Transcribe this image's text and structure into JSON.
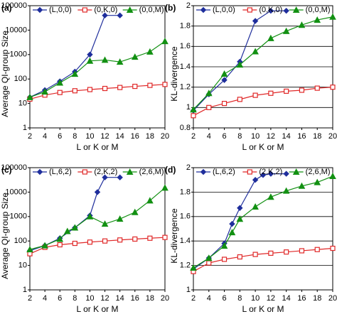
{
  "chart_data": [
    {
      "type": "line",
      "panel": "(a)",
      "y_label": "Average QI-group Size",
      "x_label": "L or K or M",
      "xlim": [
        2,
        20
      ],
      "xticks": [
        2,
        4,
        6,
        8,
        10,
        12,
        14,
        16,
        18,
        20
      ],
      "ylim": [
        1,
        100000
      ],
      "yticks": [
        1,
        10,
        100,
        1000,
        10000,
        100000
      ],
      "log_y": true,
      "grid": false,
      "series": [
        {
          "name": "(L,0,0)",
          "color": "#1f2e9c",
          "marker": "diamond",
          "x": [
            2,
            4,
            6,
            8,
            10,
            12,
            14
          ],
          "values": [
            18,
            35,
            80,
            200,
            1000,
            40000,
            40000
          ]
        },
        {
          "name": "(0,K,0)",
          "color": "#e02828",
          "marker": "square",
          "x": [
            2,
            4,
            6,
            8,
            10,
            12,
            14,
            16,
            18,
            20
          ],
          "values": [
            15,
            22,
            28,
            33,
            37,
            41,
            45,
            50,
            55,
            60
          ]
        },
        {
          "name": "(0,0,M)",
          "color": "#129012",
          "marker": "triangle",
          "x": [
            2,
            4,
            6,
            8,
            10,
            12,
            14,
            16,
            18,
            20
          ],
          "values": [
            18,
            30,
            70,
            160,
            550,
            600,
            500,
            800,
            1300,
            3500
          ]
        }
      ]
    },
    {
      "type": "line",
      "panel": "(b)",
      "y_label": "KL-divergence",
      "x_label": "L or K or M",
      "xlim": [
        2,
        20
      ],
      "xticks": [
        2,
        4,
        6,
        8,
        10,
        12,
        14,
        16,
        18,
        20
      ],
      "ylim": [
        0.8,
        2
      ],
      "yticks": [
        0.8,
        1,
        1.2,
        1.4,
        1.6,
        1.8,
        2
      ],
      "log_y": false,
      "grid": true,
      "series": [
        {
          "name": "(L,0,0)",
          "color": "#1f2e9c",
          "marker": "diamond",
          "x": [
            2,
            4,
            6,
            8,
            10,
            12,
            14
          ],
          "values": [
            0.97,
            1.13,
            1.27,
            1.45,
            1.85,
            1.95,
            1.95
          ]
        },
        {
          "name": "(0,K,0)",
          "color": "#e02828",
          "marker": "square",
          "x": [
            2,
            4,
            6,
            8,
            10,
            12,
            14,
            16,
            18,
            20
          ],
          "values": [
            0.92,
            1.0,
            1.04,
            1.08,
            1.12,
            1.14,
            1.16,
            1.17,
            1.19,
            1.2
          ]
        },
        {
          "name": "(0,0,M)",
          "color": "#129012",
          "marker": "triangle",
          "x": [
            2,
            4,
            6,
            8,
            10,
            12,
            14,
            16,
            18,
            20
          ],
          "values": [
            0.98,
            1.14,
            1.33,
            1.42,
            1.55,
            1.68,
            1.75,
            1.81,
            1.86,
            1.89
          ]
        }
      ]
    },
    {
      "type": "line",
      "panel": "(c)",
      "y_label": "Average QI-group Size",
      "x_label": "L or K or M",
      "xlim": [
        2,
        20
      ],
      "xticks": [
        2,
        4,
        6,
        8,
        10,
        12,
        14,
        16,
        18,
        20
      ],
      "ylim": [
        1,
        100000
      ],
      "yticks": [
        1,
        10,
        100,
        1000,
        10000,
        100000
      ],
      "log_y": true,
      "grid": false,
      "series": [
        {
          "name": "(L,6,2)",
          "color": "#1f2e9c",
          "marker": "diamond",
          "x": [
            2,
            4,
            6,
            8,
            10,
            11,
            12,
            14
          ],
          "values": [
            40,
            65,
            130,
            350,
            1100,
            10000,
            40000,
            40000
          ]
        },
        {
          "name": "(2,K,2)",
          "color": "#e02828",
          "marker": "square",
          "x": [
            2,
            4,
            6,
            8,
            10,
            12,
            14,
            16,
            18,
            20
          ],
          "values": [
            30,
            55,
            70,
            80,
            90,
            100,
            110,
            120,
            130,
            140
          ]
        },
        {
          "name": "(2,6,M)",
          "color": "#129012",
          "marker": "triangle",
          "x": [
            2,
            4,
            6,
            7,
            8,
            10,
            12,
            14,
            16,
            18,
            20
          ],
          "values": [
            45,
            65,
            120,
            250,
            350,
            1000,
            500,
            800,
            1500,
            4500,
            15000
          ]
        }
      ]
    },
    {
      "type": "line",
      "panel": "(d)",
      "y_label": "KL-divergence",
      "x_label": "L or K or M",
      "xlim": [
        2,
        20
      ],
      "xticks": [
        2,
        4,
        6,
        8,
        10,
        12,
        14,
        16,
        18,
        20
      ],
      "ylim": [
        1,
        2
      ],
      "yticks": [
        1,
        1.2,
        1.4,
        1.6,
        1.8,
        2
      ],
      "log_y": false,
      "grid": true,
      "series": [
        {
          "name": "(L,6,2)",
          "color": "#1f2e9c",
          "marker": "diamond",
          "x": [
            2,
            4,
            6,
            7,
            8,
            10,
            11,
            12,
            14
          ],
          "values": [
            1.17,
            1.26,
            1.38,
            1.54,
            1.67,
            1.9,
            1.94,
            1.95,
            1.95
          ]
        },
        {
          "name": "(2,K,2)",
          "color": "#e02828",
          "marker": "square",
          "x": [
            2,
            4,
            6,
            8,
            10,
            12,
            14,
            16,
            18,
            20
          ],
          "values": [
            1.15,
            1.22,
            1.25,
            1.27,
            1.29,
            1.3,
            1.31,
            1.32,
            1.33,
            1.34
          ]
        },
        {
          "name": "(2,6,M)",
          "color": "#129012",
          "marker": "triangle",
          "x": [
            2,
            4,
            6,
            7,
            8,
            10,
            12,
            14,
            16,
            18,
            20
          ],
          "values": [
            1.18,
            1.26,
            1.36,
            1.47,
            1.58,
            1.68,
            1.76,
            1.81,
            1.85,
            1.88,
            1.93
          ]
        }
      ]
    }
  ]
}
